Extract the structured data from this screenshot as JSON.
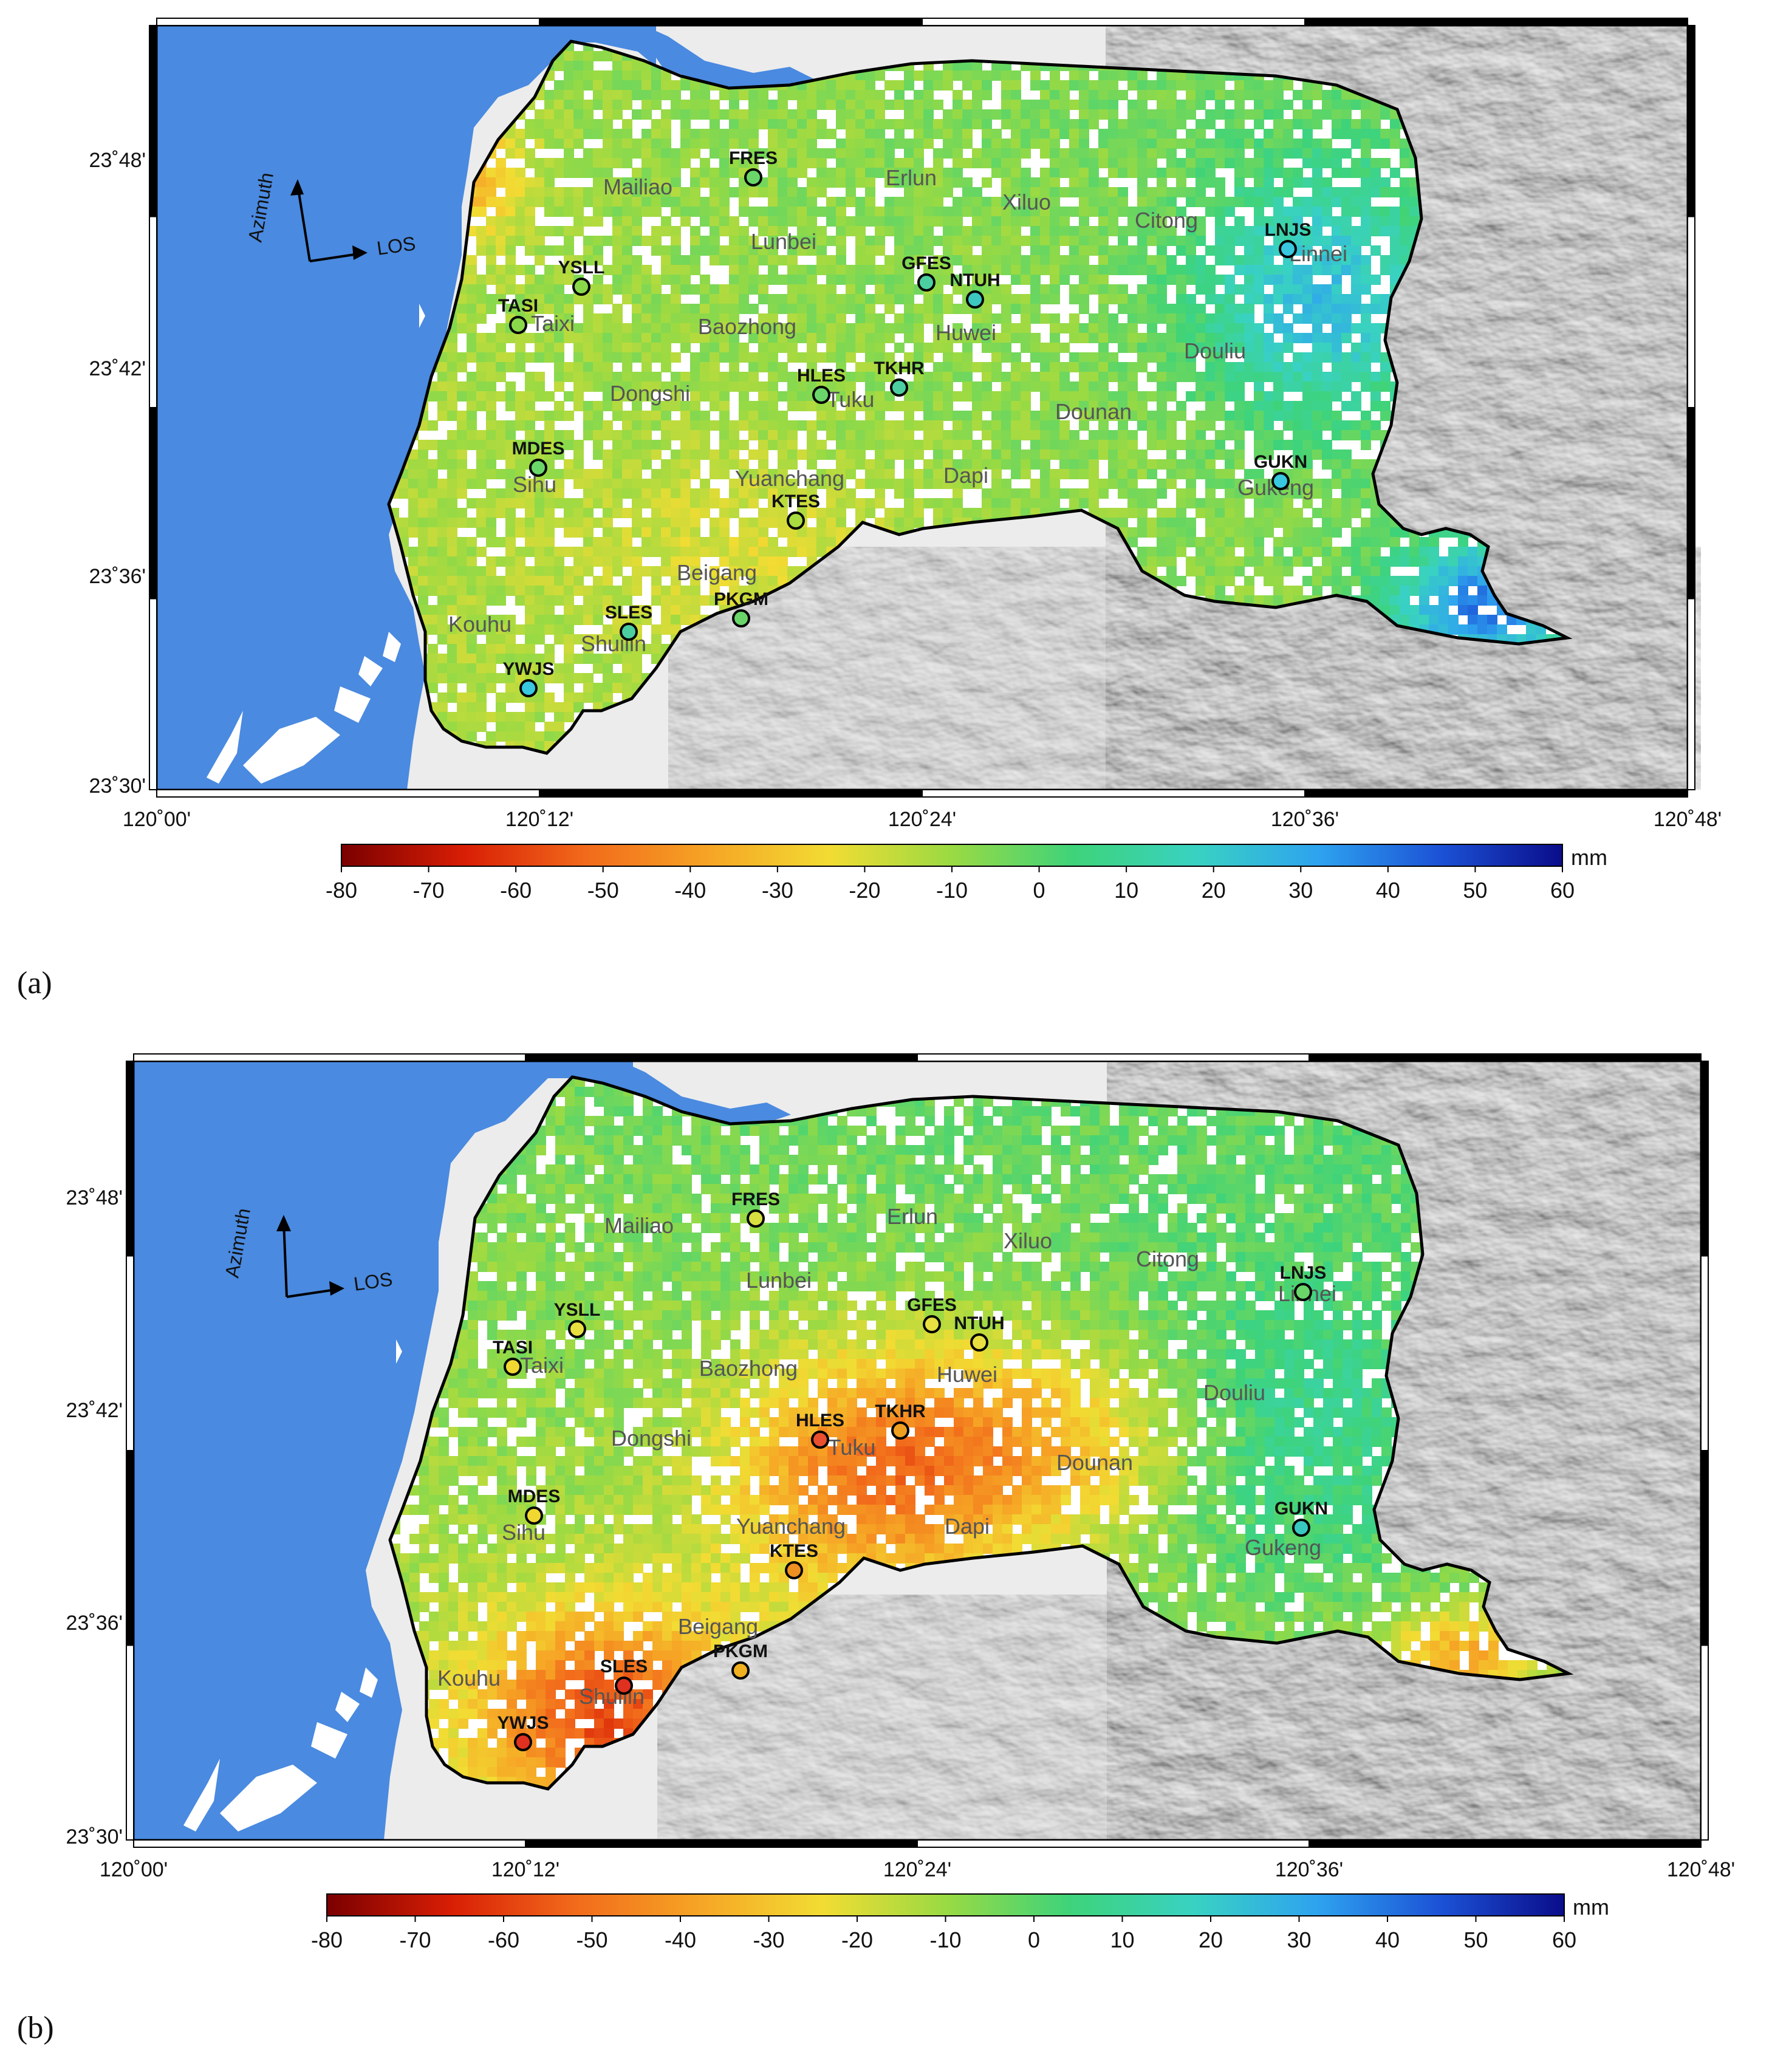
{
  "panels": [
    {
      "label": "(a)",
      "stations": [
        {
          "code": "FRES",
          "color": "#6ad66a"
        },
        {
          "code": "LNJS",
          "color": "#38c8e0"
        },
        {
          "code": "GFES",
          "color": "#4ccfa0"
        },
        {
          "code": "NTUH",
          "color": "#3cc8c0"
        },
        {
          "code": "YSLL",
          "color": "#8ad84a"
        },
        {
          "code": "TASI",
          "color": "#8ad84a"
        },
        {
          "code": "HLES",
          "color": "#6ad66a"
        },
        {
          "code": "TKHR",
          "color": "#4ccfa0"
        },
        {
          "code": "MDES",
          "color": "#6ad66a"
        },
        {
          "code": "GUKN",
          "color": "#38c8e0"
        },
        {
          "code": "KTES",
          "color": "#a8dc40"
        },
        {
          "code": "SLES",
          "color": "#4ccfa0"
        },
        {
          "code": "PKGM",
          "color": "#6ad66a"
        },
        {
          "code": "YWJS",
          "color": "#38c8e0"
        }
      ]
    },
    {
      "label": "(b)",
      "stations": [
        {
          "code": "FRES",
          "color": "#d8e040"
        },
        {
          "code": "LNJS",
          "color": "#6ad66a"
        },
        {
          "code": "GFES",
          "color": "#e8e040"
        },
        {
          "code": "NTUH",
          "color": "#e8e040"
        },
        {
          "code": "YSLL",
          "color": "#e8e040"
        },
        {
          "code": "TASI",
          "color": "#f0d830"
        },
        {
          "code": "HLES",
          "color": "#e85030"
        },
        {
          "code": "TKHR",
          "color": "#f0a020"
        },
        {
          "code": "MDES",
          "color": "#f0d830"
        },
        {
          "code": "GUKN",
          "color": "#38c8c0"
        },
        {
          "code": "KTES",
          "color": "#f09020"
        },
        {
          "code": "SLES",
          "color": "#e03020"
        },
        {
          "code": "PKGM",
          "color": "#f0b020"
        },
        {
          "code": "YWJS",
          "color": "#e03020"
        }
      ]
    }
  ],
  "towns": [
    "Mailiao",
    "Lunbei",
    "Erlun",
    "Xiluo",
    "Citong",
    "Linnei",
    "Taixi",
    "Baozhong",
    "Huwei",
    "Douliu",
    "Dongshi",
    "Tuku",
    "Dounan",
    "Sihu",
    "Yuanchang",
    "Dapi",
    "Gukeng",
    "Beigang",
    "Kouhu",
    "Shuilin"
  ],
  "lat_ticks": [
    "23˚48'",
    "23˚42'",
    "23˚36'",
    "23˚30'"
  ],
  "lon_ticks": [
    "120˚00'",
    "120˚12'",
    "120˚24'",
    "120˚36'",
    "120˚48'"
  ],
  "arrow_labels": {
    "azimuth": "Azimuth",
    "los": "LOS"
  },
  "colorbar": {
    "unit": "mm",
    "ticks": [
      "-80",
      "-70",
      "-60",
      "-50",
      "-40",
      "-30",
      "-20",
      "-10",
      "0",
      "10",
      "20",
      "30",
      "40",
      "50",
      "60"
    ],
    "range": [
      -80,
      60
    ],
    "stops": [
      "#7a0000",
      "#d81e05",
      "#f26a1b",
      "#f6a425",
      "#f2dc33",
      "#9ada43",
      "#3ed37a",
      "#39d2c2",
      "#2ea3ef",
      "#1c52d6",
      "#0a0d8a"
    ]
  },
  "colors": {
    "sea": "#4a8ae0",
    "land": "#ececec",
    "boundary": "#000000"
  }
}
